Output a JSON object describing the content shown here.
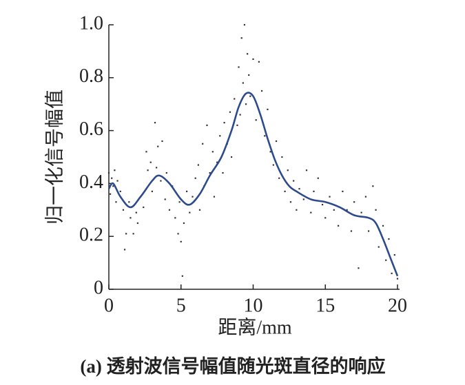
{
  "chart_data": {
    "type": "scatter",
    "caption": "(a) 透射波信号幅值随光斑直径的响应",
    "x_label": "距离/mm",
    "y_label": "归一化信号幅值",
    "xlim": [
      0,
      20
    ],
    "ylim": [
      0,
      1
    ],
    "xticks": [
      0,
      5,
      10,
      15,
      20
    ],
    "yticks": [
      0,
      0.2,
      0.4,
      0.6,
      0.8,
      {
        "value": 1,
        "label": "1.0"
      }
    ],
    "series": [
      {
        "type": "scatter",
        "color": "#333333",
        "x": [
          0.0,
          0.1,
          0.2,
          0.3,
          0.4,
          0.5,
          0.6,
          0.8,
          1.0,
          1.1,
          1.2,
          1.4,
          1.5,
          1.7,
          1.9,
          2.0,
          2.2,
          2.4,
          2.6,
          2.7,
          2.9,
          3.0,
          3.2,
          3.3,
          3.4,
          3.6,
          3.7,
          3.9,
          4.0,
          4.2,
          4.4,
          4.6,
          4.8,
          4.9,
          5.0,
          5.1,
          5.2,
          5.4,
          5.6,
          5.8,
          6.0,
          6.2,
          6.3,
          6.5,
          6.6,
          6.8,
          7.0,
          7.2,
          7.3,
          7.5,
          7.7,
          7.9,
          8.0,
          8.2,
          8.4,
          8.5,
          8.7,
          8.9,
          9.0,
          9.1,
          9.2,
          9.3,
          9.4,
          9.5,
          9.6,
          9.7,
          9.8,
          10.0,
          10.2,
          10.4,
          10.6,
          10.8,
          11.0,
          11.2,
          11.4,
          11.6,
          11.8,
          12.0,
          12.2,
          12.4,
          12.6,
          12.8,
          13.0,
          13.2,
          13.5,
          13.7,
          14.0,
          14.2,
          14.5,
          14.8,
          15.0,
          15.3,
          15.6,
          15.9,
          16.2,
          16.5,
          16.8,
          17.0,
          17.3,
          17.5,
          17.8,
          18.0,
          18.3,
          18.5,
          18.7,
          19.0,
          19.2,
          19.4,
          19.6,
          19.8,
          20.0
        ],
        "values": [
          0.44,
          0.36,
          0.42,
          0.39,
          0.45,
          0.33,
          0.41,
          0.37,
          0.3,
          0.15,
          0.21,
          0.33,
          0.27,
          0.21,
          0.29,
          0.25,
          0.35,
          0.31,
          0.52,
          0.45,
          0.48,
          0.37,
          0.63,
          0.46,
          0.54,
          0.41,
          0.56,
          0.34,
          0.44,
          0.3,
          0.39,
          0.27,
          0.21,
          0.33,
          0.18,
          0.05,
          0.25,
          0.37,
          0.29,
          0.35,
          0.42,
          0.47,
          0.3,
          0.55,
          0.39,
          0.62,
          0.44,
          0.52,
          0.35,
          0.48,
          0.58,
          0.44,
          0.63,
          0.55,
          0.67,
          0.5,
          0.72,
          0.62,
          0.84,
          0.66,
          0.95,
          0.78,
          1.0,
          0.7,
          0.89,
          0.81,
          0.73,
          0.87,
          0.64,
          0.86,
          0.75,
          0.58,
          0.68,
          0.52,
          0.47,
          0.56,
          0.42,
          0.5,
          0.37,
          0.45,
          0.33,
          0.41,
          0.3,
          0.38,
          0.34,
          0.45,
          0.29,
          0.37,
          0.42,
          0.32,
          0.27,
          0.35,
          0.3,
          0.24,
          0.37,
          0.3,
          0.22,
          0.33,
          0.08,
          0.29,
          0.35,
          0.22,
          0.39,
          0.3,
          0.16,
          0.24,
          0.11,
          0.19,
          0.06,
          0.13,
          0.04
        ]
      },
      {
        "type": "line",
        "color": "#2c4a8c",
        "x": [
          0,
          0.3,
          0.8,
          1.5,
          2.2,
          3,
          3.5,
          4.2,
          5,
          5.6,
          6.3,
          7,
          7.8,
          8.5,
          9,
          9.5,
          10,
          10.5,
          11,
          11.5,
          12,
          12.5,
          13,
          14,
          15,
          16,
          17,
          18,
          18.5,
          19,
          19.5,
          20
        ],
        "values": [
          0.38,
          0.4,
          0.35,
          0.31,
          0.35,
          0.41,
          0.43,
          0.4,
          0.34,
          0.32,
          0.36,
          0.43,
          0.5,
          0.6,
          0.69,
          0.74,
          0.73,
          0.66,
          0.57,
          0.49,
          0.43,
          0.39,
          0.37,
          0.34,
          0.33,
          0.31,
          0.28,
          0.27,
          0.25,
          0.19,
          0.12,
          0.05
        ]
      }
    ]
  }
}
